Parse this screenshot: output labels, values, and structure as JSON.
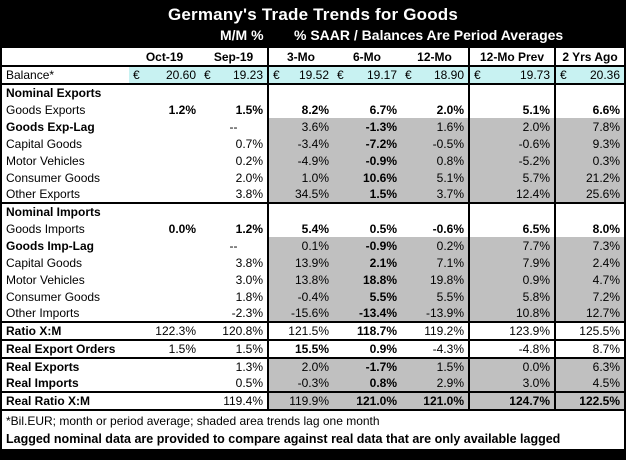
{
  "title": "Germany's Trade Trends for Goods",
  "subheads": {
    "mm": "M/M %",
    "saar": "% SAAR / Balances Are Period Averages"
  },
  "columns": [
    "",
    "Oct-19",
    "Sep-19",
    "3-Mo",
    "6-Mo",
    "12-Mo",
    "12-Mo Prev",
    "2 Yrs Ago"
  ],
  "balance": {
    "label": "Balance*",
    "currency": "€",
    "values": [
      "20.60",
      "19.23",
      "19.52",
      "19.17",
      "18.90",
      "19.73",
      "20.36"
    ]
  },
  "rows": [
    {
      "label": "Nominal Exports",
      "section": true,
      "values": [
        "",
        "",
        "",
        "",
        "",
        "",
        ""
      ]
    },
    {
      "label": "Goods Exports",
      "values": [
        "1.2%",
        "1.5%",
        "8.2%",
        "6.7%",
        "2.0%",
        "5.1%",
        "6.6%"
      ],
      "bold_values": true
    },
    {
      "label": "Goods Exp-Lag",
      "bold_label": true,
      "shaded": true,
      "values": [
        "",
        "--",
        "3.6%",
        "-1.3%",
        "1.6%",
        "2.0%",
        "7.8%"
      ],
      "bold_cols": [
        3
      ]
    },
    {
      "label": "Capital Goods",
      "shaded": true,
      "values": [
        "",
        "0.7%",
        "-3.4%",
        "-7.2%",
        "-0.5%",
        "-0.6%",
        "9.3%"
      ],
      "bold_cols": [
        3
      ]
    },
    {
      "label": "Motor Vehicles",
      "shaded": true,
      "values": [
        "",
        "0.2%",
        "-4.9%",
        "-0.9%",
        "0.8%",
        "-5.2%",
        "0.3%"
      ],
      "bold_cols": [
        3
      ]
    },
    {
      "label": "Consumer Goods",
      "shaded": true,
      "values": [
        "",
        "2.0%",
        "1.0%",
        "10.6%",
        "5.1%",
        "5.7%",
        "21.2%"
      ],
      "bold_cols": [
        3
      ]
    },
    {
      "label": "Other Exports",
      "shaded": true,
      "values": [
        "",
        "3.8%",
        "34.5%",
        "1.5%",
        "3.7%",
        "12.4%",
        "25.6%"
      ],
      "bold_cols": [
        3
      ]
    },
    {
      "label": "Nominal Imports",
      "section": true,
      "values": [
        "",
        "",
        "",
        "",
        "",
        "",
        ""
      ]
    },
    {
      "label": "Goods Imports",
      "values": [
        "0.0%",
        "1.2%",
        "5.4%",
        "0.5%",
        "-0.6%",
        "6.5%",
        "8.0%"
      ],
      "bold_values": true
    },
    {
      "label": "Goods Imp-Lag",
      "bold_label": true,
      "shaded": true,
      "values": [
        "",
        "--",
        "0.1%",
        "-0.9%",
        "0.2%",
        "7.7%",
        "7.3%"
      ],
      "bold_cols": [
        3
      ]
    },
    {
      "label": "Capital Goods",
      "shaded": true,
      "values": [
        "",
        "3.8%",
        "13.9%",
        "2.1%",
        "7.1%",
        "7.9%",
        "2.4%"
      ],
      "bold_cols": [
        3
      ]
    },
    {
      "label": "Motor Vehicles",
      "shaded": true,
      "values": [
        "",
        "3.0%",
        "13.8%",
        "18.8%",
        "19.8%",
        "0.9%",
        "4.7%"
      ],
      "bold_cols": [
        3
      ]
    },
    {
      "label": "Consumer Goods",
      "shaded": true,
      "values": [
        "",
        "1.8%",
        "-0.4%",
        "5.5%",
        "5.5%",
        "5.8%",
        "7.2%"
      ],
      "bold_cols": [
        3
      ]
    },
    {
      "label": "Other Imports",
      "shaded": true,
      "values": [
        "",
        "-2.3%",
        "-15.6%",
        "-13.4%",
        "-13.9%",
        "10.8%",
        "12.7%"
      ],
      "bold_cols": [
        3
      ]
    },
    {
      "label": "Ratio X:M",
      "bold_label": true,
      "boxed": true,
      "values": [
        "122.3%",
        "120.8%",
        "121.5%",
        "118.7%",
        "119.2%",
        "123.9%",
        "125.5%"
      ],
      "bold_cols": [
        3
      ]
    },
    {
      "label": "Real Export Orders",
      "bold_label": true,
      "boxed": true,
      "values": [
        "1.5%",
        "1.5%",
        "15.5%",
        "0.9%",
        "-4.3%",
        "-4.8%",
        "8.7%"
      ],
      "bold_cols": [
        2,
        3
      ]
    },
    {
      "label": "Real Exports",
      "bold_label": true,
      "shaded": true,
      "values": [
        "",
        "1.3%",
        "2.0%",
        "-1.7%",
        "1.5%",
        "0.0%",
        "6.3%"
      ],
      "bold_cols": [
        3
      ]
    },
    {
      "label": "Real Imports",
      "bold_label": true,
      "shaded": true,
      "values": [
        "",
        "0.5%",
        "-0.3%",
        "0.8%",
        "2.9%",
        "3.0%",
        "4.5%"
      ],
      "bold_cols": [
        3
      ]
    },
    {
      "label": "Real Ratio X:M",
      "bold_label": true,
      "boxed": true,
      "shaded": true,
      "values": [
        "",
        "119.4%",
        "119.9%",
        "121.0%",
        "121.0%",
        "124.7%",
        "122.5%"
      ],
      "bold_cols": [
        3,
        4,
        5,
        6
      ]
    }
  ],
  "notes": {
    "line1": "*Bil.EUR; month or period average; shaded area trends lag one month",
    "line2": "Lagged nominal data are provided to compare against real data that are only available lagged"
  }
}
